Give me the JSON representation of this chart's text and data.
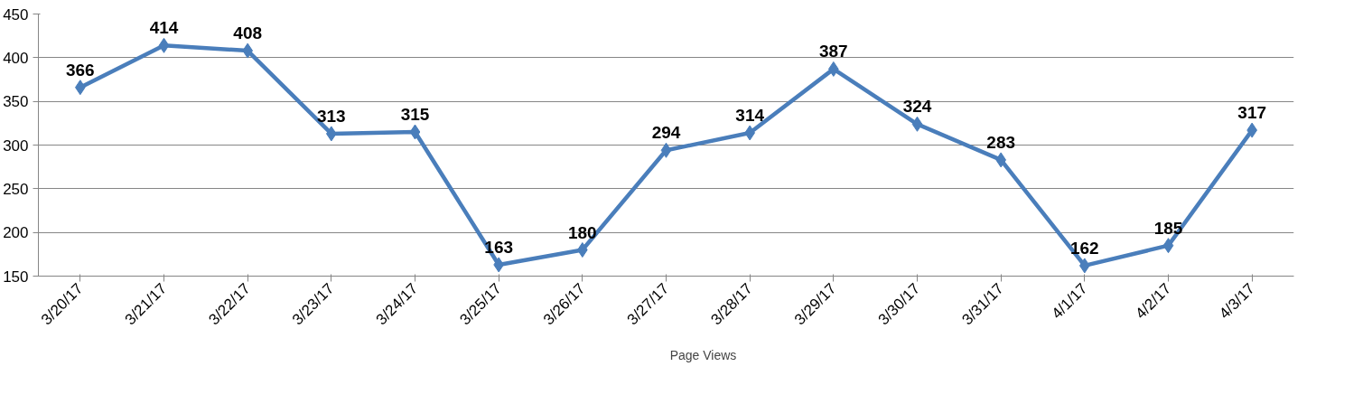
{
  "chart_data": {
    "type": "line",
    "categories": [
      "3/20/17",
      "3/21/17",
      "3/22/17",
      "3/23/17",
      "3/24/17",
      "3/25/17",
      "3/26/17",
      "3/27/17",
      "3/28/17",
      "3/29/17",
      "3/30/17",
      "3/31/17",
      "4/1/17",
      "4/2/17",
      "4/3/17"
    ],
    "series": [
      {
        "name": "Page Views",
        "color": "#4a7ebb",
        "values": [
          366,
          414,
          408,
          313,
          315,
          163,
          180,
          294,
          314,
          387,
          324,
          283,
          162,
          185,
          317
        ]
      }
    ],
    "ylim": [
      150,
      450
    ],
    "yticks": [
      150,
      200,
      250,
      300,
      350,
      400,
      450
    ],
    "grid": "y",
    "legend": "bottom",
    "marker": "diamond",
    "line_style": "solid",
    "data_labels": true
  }
}
